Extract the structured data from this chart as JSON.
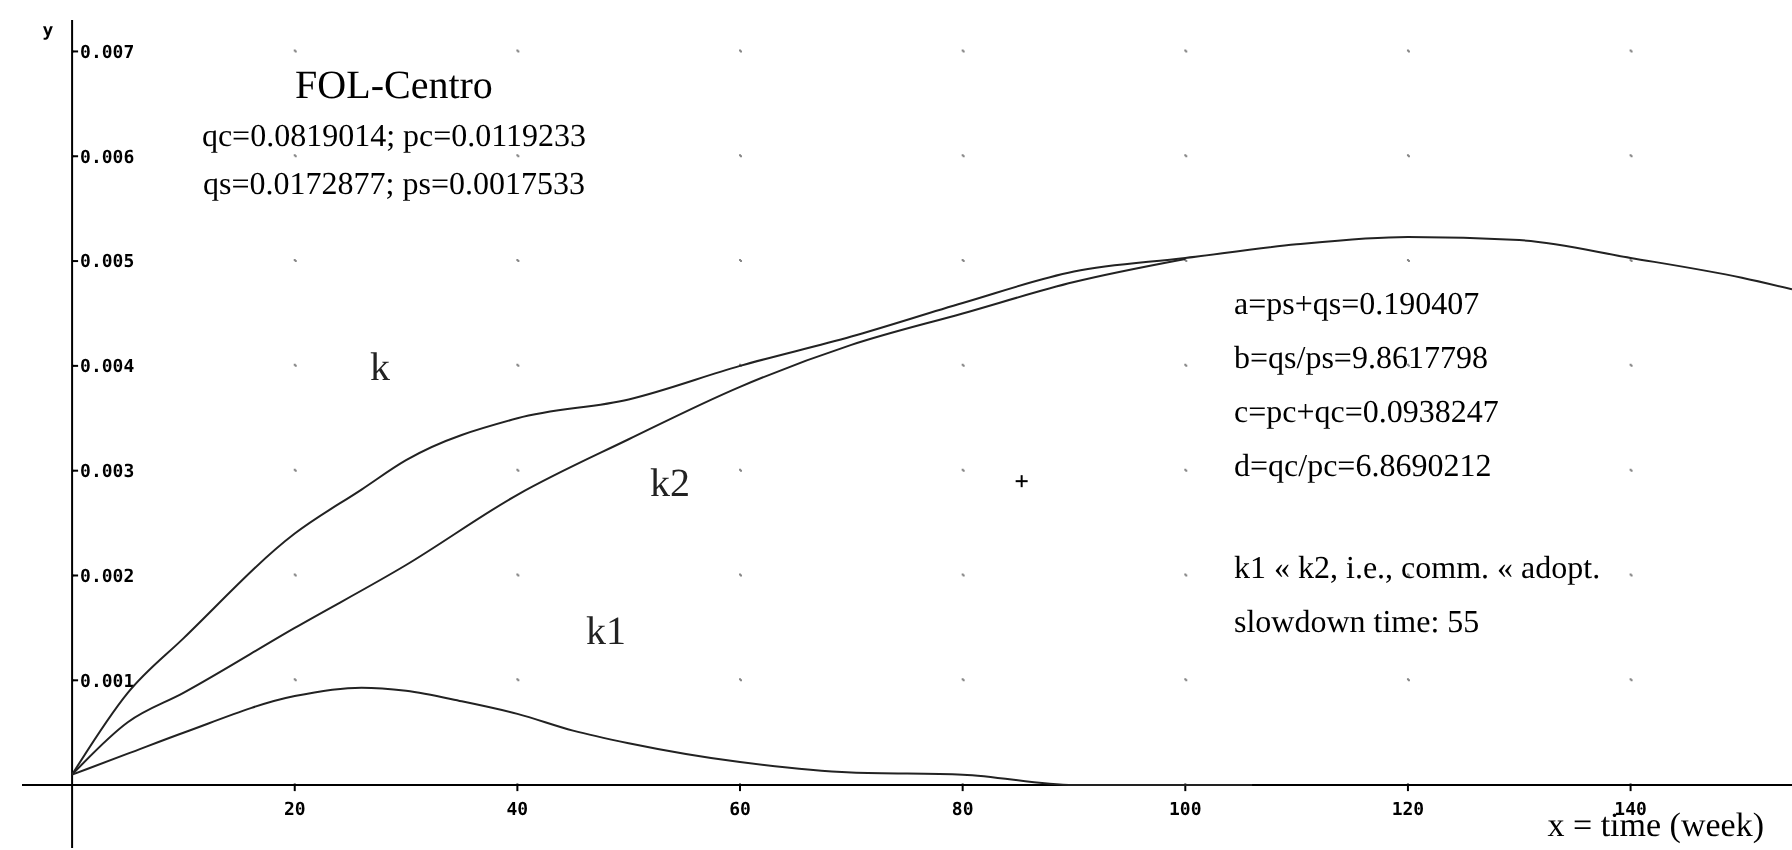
{
  "chart_data": {
    "type": "line",
    "title": "FOL-Centro",
    "xlabel": "x = time (week)",
    "ylabel": "y",
    "xlim": [
      -4.5,
      154.5
    ],
    "ylim": [
      -0.0006,
      0.0073
    ],
    "xticks": [
      20,
      40,
      60,
      80,
      100,
      120,
      140
    ],
    "yticks": [
      0.001,
      0.002,
      0.003,
      0.004,
      0.005,
      0.006,
      0.007
    ],
    "grid": true,
    "marker": "none",
    "line_style": "solid",
    "annotations": [
      "qc=0.0819014;  pc=0.0119233",
      "qs=0.0172877;  ps=0.0017533",
      "a=ps+qs=0.190407",
      "b=qs/ps=9.8617798",
      "c=pc+qc=0.0938247",
      "d=qc/pc=6.8690212",
      "k1 « k2,  i.e., comm. «  adopt.",
      "slowdown time: 55"
    ],
    "series": [
      {
        "name": "k",
        "color": "#222222",
        "x": [
          0,
          5,
          10,
          20,
          26,
          30,
          40,
          50,
          60,
          70,
          80,
          90,
          100,
          110,
          120,
          130,
          140,
          150,
          154.5
        ],
        "values": [
          0.0001,
          0.00088,
          0.0014,
          0.0024,
          0.00282,
          0.0031,
          0.0035,
          0.00368,
          0.004,
          0.00428,
          0.0046,
          0.0049,
          0.00503,
          0.00516,
          0.00523,
          0.0052,
          0.00503,
          0.00484,
          0.00473
        ]
      },
      {
        "name": "k1",
        "color": "#222222",
        "x": [
          0,
          5,
          10,
          20,
          26,
          30,
          35,
          40,
          45,
          50,
          60,
          70,
          80,
          90,
          100,
          106
        ],
        "values": [
          0.0001,
          0.0003,
          0.0005,
          0.00085,
          0.00093,
          0.0009,
          0.0008,
          0.00068,
          0.00052,
          0.0004,
          0.00022,
          0.00012,
          0.0001,
          0,
          0,
          0
        ]
      },
      {
        "name": "k2",
        "color": "#222222",
        "x": [
          0,
          5,
          10,
          20,
          30,
          40,
          50,
          60,
          70,
          80,
          90,
          100
        ],
        "values": [
          0.0001,
          0.0006,
          0.00088,
          0.0015,
          0.0021,
          0.00277,
          0.0033,
          0.0038,
          0.0042,
          0.0045,
          0.0048,
          0.00502
        ]
      }
    ]
  }
}
